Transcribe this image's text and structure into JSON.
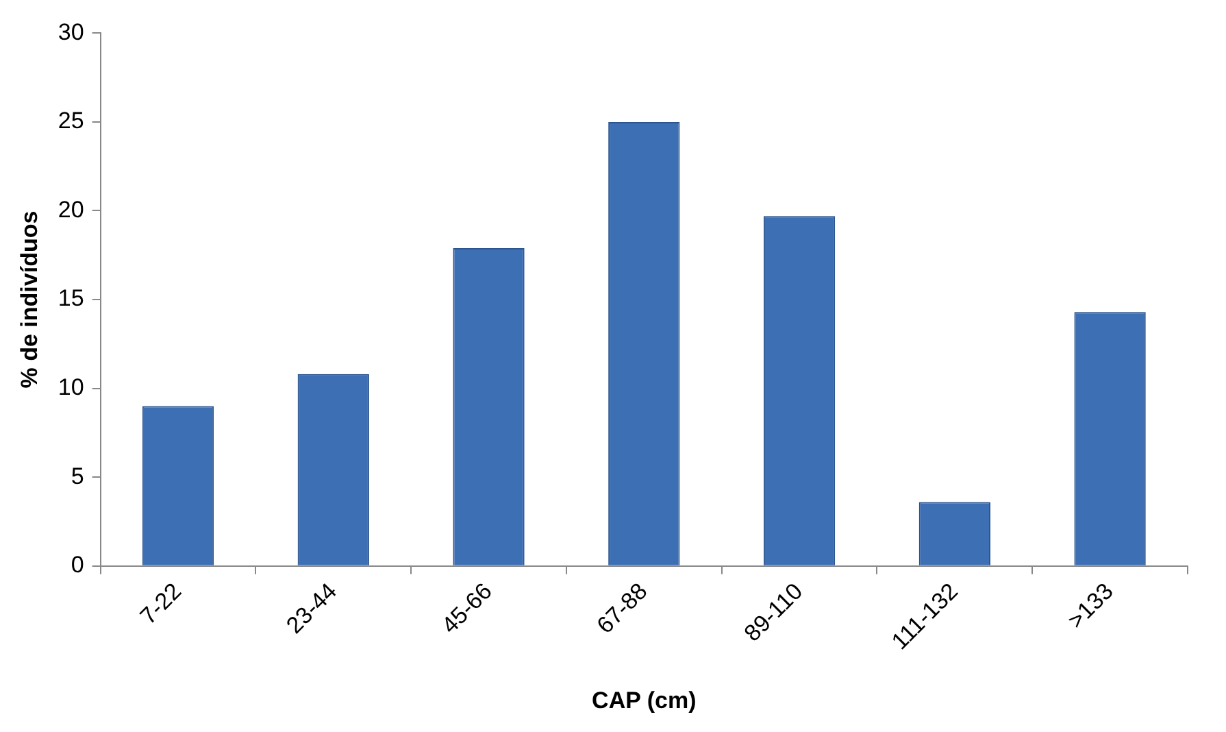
{
  "chart_data": {
    "type": "bar",
    "xlabel": "CAP (cm)",
    "ylabel": "% de indivíduos",
    "categories": [
      "7-22",
      "23-44",
      "45-66",
      "67-88",
      "89-110",
      "111-132",
      ">133"
    ],
    "values": [
      9.0,
      10.8,
      17.9,
      25.0,
      19.7,
      3.6,
      14.3
    ],
    "color": "#3d6fb5",
    "ylim": [
      0,
      30
    ],
    "yticks": [
      0,
      5,
      10,
      15,
      20,
      25,
      30
    ],
    "grid": false,
    "legend": false
  }
}
